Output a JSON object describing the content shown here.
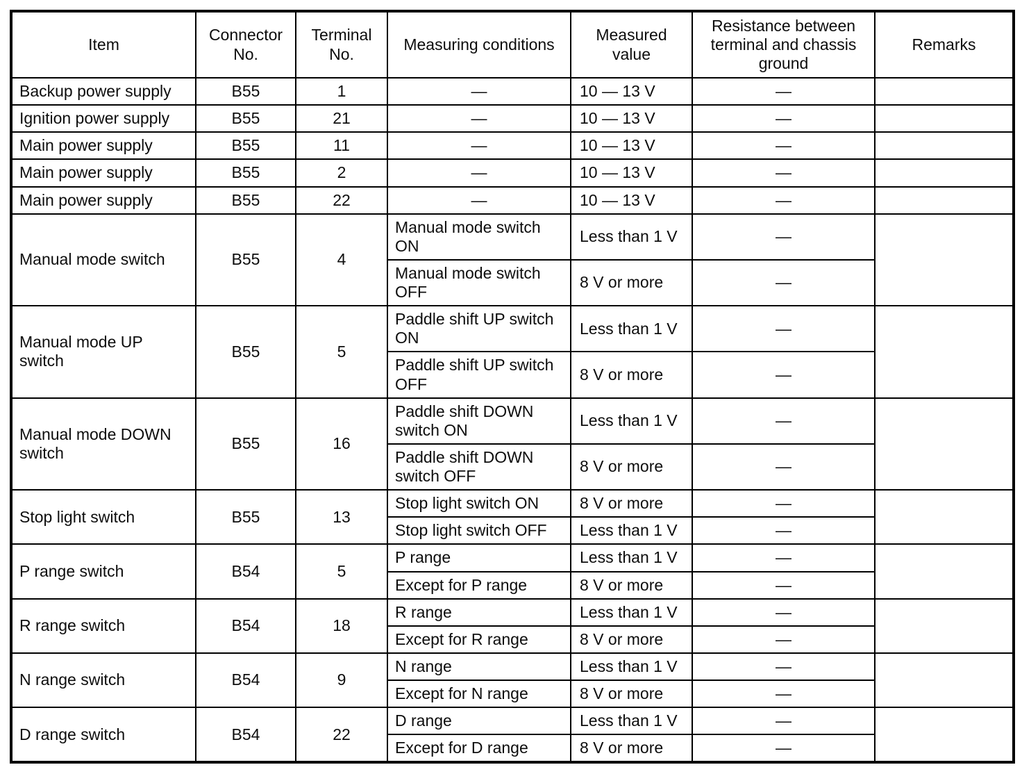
{
  "document": {
    "kind": "inspection-spec-table"
  },
  "table": {
    "headers": [
      "Item",
      "Connector No.",
      "Terminal No.",
      "Measuring conditions",
      "Measured value",
      "Resistance between terminal and chassis ground",
      "Remarks"
    ],
    "rows": [
      {
        "item": "Backup power supply",
        "connector": "B55",
        "terminal": "1",
        "remarks": "",
        "subrows": [
          {
            "condition": "—",
            "value": "10 — 13 V",
            "resistance": "—"
          }
        ]
      },
      {
        "item": "Ignition power supply",
        "connector": "B55",
        "terminal": "21",
        "remarks": "",
        "subrows": [
          {
            "condition": "—",
            "value": "10 — 13 V",
            "resistance": "—"
          }
        ]
      },
      {
        "item": "Main power supply",
        "connector": "B55",
        "terminal": "11",
        "remarks": "",
        "subrows": [
          {
            "condition": "—",
            "value": "10 — 13 V",
            "resistance": "—"
          }
        ]
      },
      {
        "item": "Main power supply",
        "connector": "B55",
        "terminal": "2",
        "remarks": "",
        "subrows": [
          {
            "condition": "—",
            "value": "10 — 13 V",
            "resistance": "—"
          }
        ]
      },
      {
        "item": "Main power supply",
        "connector": "B55",
        "terminal": "22",
        "remarks": "",
        "subrows": [
          {
            "condition": "—",
            "value": "10 — 13 V",
            "resistance": "—"
          }
        ]
      },
      {
        "item": "Manual mode switch",
        "connector": "B55",
        "terminal": "4",
        "remarks": "",
        "subrows": [
          {
            "condition": "Manual mode switch ON",
            "value": "Less than 1 V",
            "resistance": "—"
          },
          {
            "condition": "Manual mode switch OFF",
            "value": "8 V or more",
            "resistance": "—"
          }
        ]
      },
      {
        "item": "Manual mode UP switch",
        "connector": "B55",
        "terminal": "5",
        "remarks": "",
        "subrows": [
          {
            "condition": "Paddle shift UP switch ON",
            "value": "Less than 1 V",
            "resistance": "—"
          },
          {
            "condition": "Paddle shift UP switch OFF",
            "value": "8 V or more",
            "resistance": "—"
          }
        ]
      },
      {
        "item": "Manual mode DOWN switch",
        "connector": "B55",
        "terminal": "16",
        "remarks": "",
        "subrows": [
          {
            "condition": "Paddle shift DOWN switch ON",
            "value": "Less than 1 V",
            "resistance": "—"
          },
          {
            "condition": "Paddle shift DOWN switch OFF",
            "value": "8 V or more",
            "resistance": "—"
          }
        ]
      },
      {
        "item": "Stop light switch",
        "connector": "B55",
        "terminal": "13",
        "remarks": "",
        "subrows": [
          {
            "condition": "Stop light switch ON",
            "value": "8 V or more",
            "resistance": "—"
          },
          {
            "condition": "Stop light switch OFF",
            "value": "Less than 1 V",
            "resistance": "—"
          }
        ]
      },
      {
        "item": "P range switch",
        "connector": "B54",
        "terminal": "5",
        "remarks": "",
        "subrows": [
          {
            "condition": "P range",
            "value": "Less than 1 V",
            "resistance": "—"
          },
          {
            "condition": "Except for P range",
            "value": "8 V or more",
            "resistance": "—"
          }
        ]
      },
      {
        "item": "R range switch",
        "connector": "B54",
        "terminal": "18",
        "remarks": "",
        "subrows": [
          {
            "condition": "R range",
            "value": "Less than 1 V",
            "resistance": "—"
          },
          {
            "condition": "Except for R range",
            "value": "8 V or more",
            "resistance": "—"
          }
        ]
      },
      {
        "item": "N range switch",
        "connector": "B54",
        "terminal": "9",
        "remarks": "",
        "subrows": [
          {
            "condition": "N range",
            "value": "Less than 1 V",
            "resistance": "—"
          },
          {
            "condition": "Except for N range",
            "value": "8 V or more",
            "resistance": "—"
          }
        ]
      },
      {
        "item": "D range switch",
        "connector": "B54",
        "terminal": "22",
        "remarks": "",
        "subrows": [
          {
            "condition": "D range",
            "value": "Less than 1 V",
            "resistance": "—"
          },
          {
            "condition": "Except for D range",
            "value": "8 V or more",
            "resistance": "—"
          }
        ]
      }
    ]
  }
}
